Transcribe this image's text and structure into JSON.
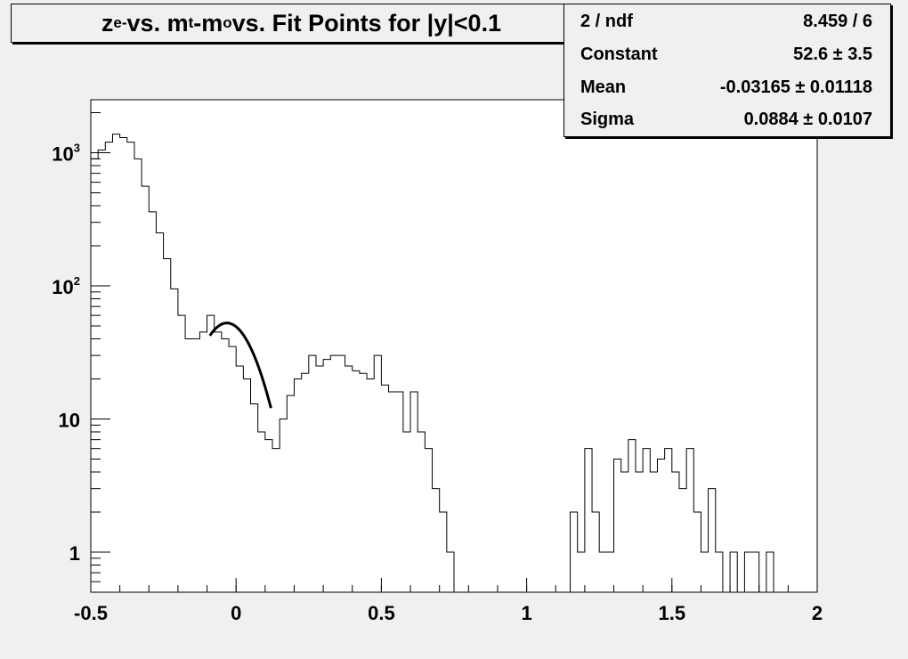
{
  "title": {
    "main": "z",
    "sub1": "e-",
    "mid1": " vs. m",
    "sub2": "t",
    "mid2": "-m",
    "sub3": "o",
    "rest": " vs. Fit Points for |y|<0.1"
  },
  "stats": {
    "rows": [
      {
        "key": "2 / ndf",
        "value": "8.459 / 6"
      },
      {
        "key": "Constant",
        "value": "52.6 ± 3.5"
      },
      {
        "key": "Mean",
        "value": "-0.03165 ± 0.01118"
      },
      {
        "key": "Sigma",
        "value": "0.0884 ± 0.0107"
      }
    ]
  },
  "chart_data": {
    "type": "histogram",
    "title": "z_e- vs. m_t-m_o vs. Fit Points for |y|<0.1",
    "xlim": [
      -0.5,
      2.0
    ],
    "ylim": [
      0.5,
      2500
    ],
    "y_scale": "log",
    "x_ticks": [
      "-0.5",
      "0",
      "0.5",
      "1",
      "1.5",
      "2"
    ],
    "x_tick_values": [
      -0.5,
      0,
      0.5,
      1,
      1.5,
      2
    ],
    "y_ticks": [
      {
        "value": 1000,
        "base": "10",
        "exp": "3"
      },
      {
        "value": 100,
        "base": "10",
        "exp": "2"
      },
      {
        "value": 10,
        "base": "10",
        "exp": ""
      },
      {
        "value": 1,
        "base": "1",
        "exp": ""
      }
    ],
    "bin_width": 0.025,
    "bin_low_edges": [
      -0.5,
      -0.475,
      -0.45,
      -0.425,
      -0.4,
      -0.375,
      -0.35,
      -0.325,
      -0.3,
      -0.275,
      -0.25,
      -0.225,
      -0.2,
      -0.175,
      -0.15,
      -0.125,
      -0.1,
      -0.075,
      -0.05,
      -0.025,
      0,
      0.025,
      0.05,
      0.075,
      0.1,
      0.125,
      0.15,
      0.175,
      0.2,
      0.225,
      0.25,
      0.275,
      0.3,
      0.325,
      0.35,
      0.375,
      0.4,
      0.425,
      0.45,
      0.475,
      0.5,
      0.525,
      0.55,
      0.575,
      0.6,
      0.625,
      0.65,
      0.675,
      0.7,
      0.725,
      0.75,
      0.775,
      0.8,
      1.15,
      1.175,
      1.2,
      1.225,
      1.25,
      1.275,
      1.3,
      1.325,
      1.35,
      1.375,
      1.4,
      1.425,
      1.45,
      1.475,
      1.5,
      1.525,
      1.55,
      1.575,
      1.6,
      1.625,
      1.65,
      1.675,
      1.7,
      1.725,
      1.75,
      1.775,
      1.8,
      1.825,
      1.85
    ],
    "bin_values": [
      900,
      1050,
      1200,
      1380,
      1300,
      1200,
      900,
      560,
      360,
      250,
      160,
      95,
      60,
      40,
      40,
      45,
      60,
      45,
      40,
      35,
      25,
      20,
      13,
      8,
      7,
      6,
      10,
      15,
      20,
      22,
      30,
      25,
      28,
      30,
      30,
      25,
      23,
      22,
      20,
      30,
      18,
      16,
      16,
      8,
      16,
      8,
      6,
      3,
      2,
      1,
      0,
      0,
      0,
      2,
      1,
      6,
      2,
      1,
      1,
      5,
      4,
      7,
      4,
      6,
      4,
      5,
      6,
      4,
      3,
      6,
      2,
      1,
      3,
      1,
      0,
      1,
      0,
      1,
      1,
      0,
      1,
      0
    ],
    "fit": {
      "type": "gaussian",
      "constant": 52.6,
      "mean": -0.03165,
      "sigma": 0.0884,
      "range": [
        -0.09,
        0.12
      ]
    }
  }
}
